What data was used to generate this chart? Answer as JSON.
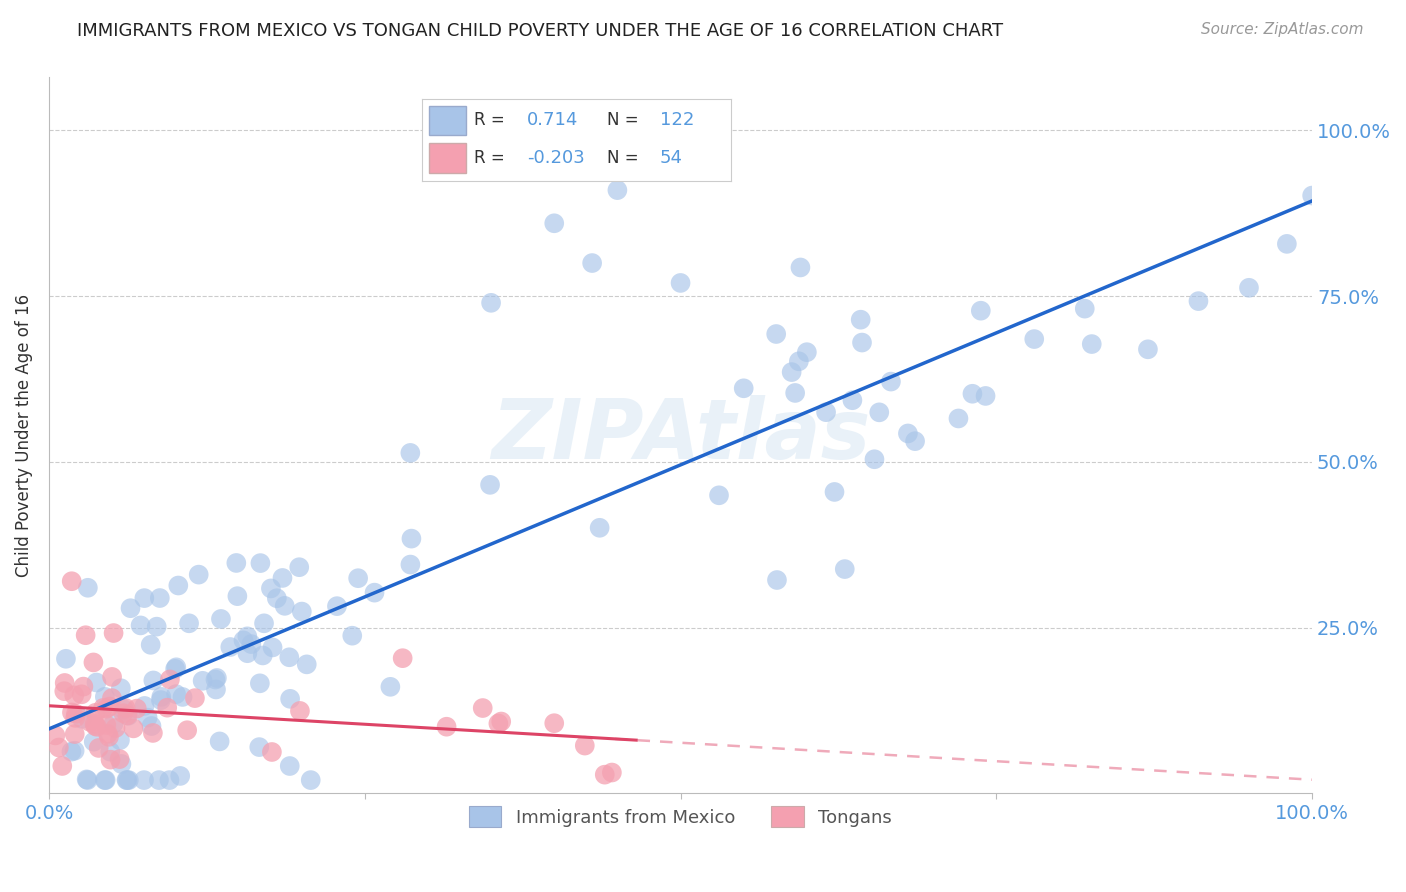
{
  "title": "IMMIGRANTS FROM MEXICO VS TONGAN CHILD POVERTY UNDER THE AGE OF 16 CORRELATION CHART",
  "source": "Source: ZipAtlas.com",
  "ylabel": "Child Poverty Under the Age of 16",
  "ytick_labels": [
    "100.0%",
    "75.0%",
    "50.0%",
    "25.0%"
  ],
  "ytick_values": [
    1.0,
    0.75,
    0.5,
    0.25
  ],
  "xtick_left": "0.0%",
  "xtick_right": "100.0%",
  "blue_R": "0.714",
  "blue_N": "122",
  "pink_R": "-0.203",
  "pink_N": "54",
  "blue_color": "#A8C4E8",
  "pink_color": "#F4A0B0",
  "blue_line_color": "#2266CC",
  "pink_line_color": "#DD4466",
  "blue_label": "Immigrants from Mexico",
  "pink_label": "Tongans",
  "watermark": "ZIPAtlas",
  "background_color": "#FFFFFF",
  "grid_color": "#CCCCCC",
  "title_color": "#222222",
  "axis_tick_color": "#5599DD",
  "blue_seed": 42,
  "pink_seed": 17
}
